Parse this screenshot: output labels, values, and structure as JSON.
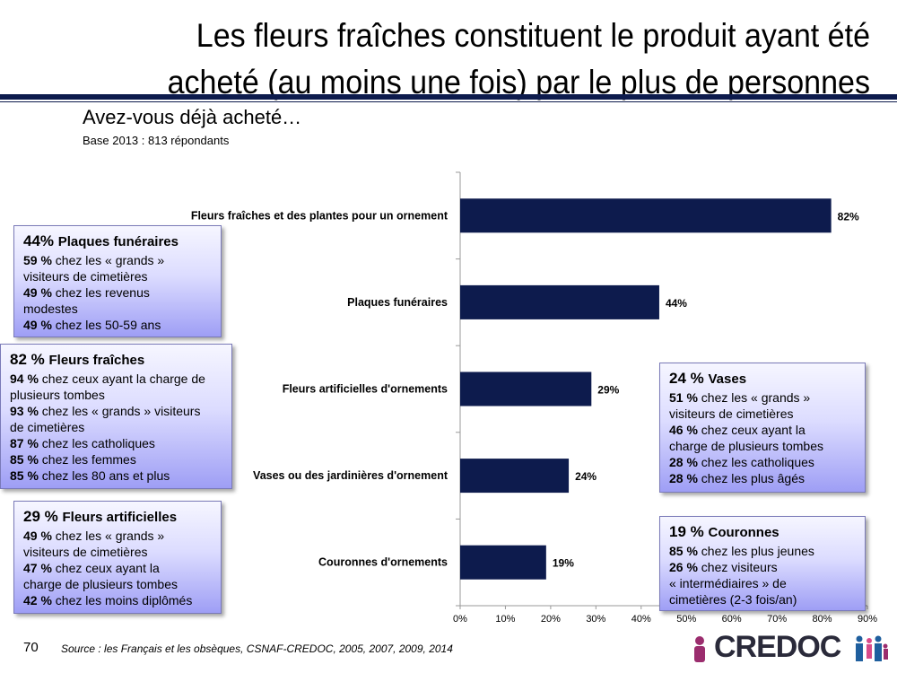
{
  "title_line1": "Les fleurs fraîches constituent le produit ayant été",
  "title_line2": "acheté (au moins une fois) par le plus de personnes",
  "question": "Avez-vous déjà acheté…",
  "base": "Base 2013 : 813 répondants",
  "chart_data": {
    "type": "bar",
    "orientation": "horizontal",
    "categories": [
      "Fleurs fraîches et des plantes pour un ornement",
      "Plaques funéraires",
      "Fleurs artificielles d'ornements",
      "Vases ou des jardinières d'ornement",
      "Couronnes d'ornements"
    ],
    "values": [
      82,
      44,
      29,
      24,
      19
    ],
    "data_labels": [
      "82%",
      "44%",
      "29%",
      "24%",
      "19%"
    ],
    "xlim": [
      0,
      90
    ],
    "x_ticks": [
      "0%",
      "10%",
      "20%",
      "30%",
      "40%",
      "50%",
      "60%",
      "70%",
      "80%",
      "90%"
    ],
    "grid": false,
    "bar_color": "#0d1b4d"
  },
  "boxes": {
    "plaques": {
      "pct": "44%",
      "name": "Plaques funéraires",
      "lines": [
        {
          "b": "59 %",
          "t": " chez les « grands »"
        },
        {
          "b": "",
          "t": "visiteurs de cimetières"
        },
        {
          "b": "49 %",
          "t": " chez les revenus"
        },
        {
          "b": "",
          "t": "modestes"
        },
        {
          "b": "49 %",
          "t": " chez les  50-59 ans"
        }
      ]
    },
    "fleurs": {
      "pct": "82 %",
      "name": "Fleurs fraîches",
      "lines": [
        {
          "b": "94 %",
          "t": " chez ceux ayant la charge de"
        },
        {
          "b": "",
          "t": "plusieurs tombes"
        },
        {
          "b": "93 %",
          "t": " chez les « grands » visiteurs"
        },
        {
          "b": "",
          "t": "de cimetières"
        },
        {
          "b": "87 %",
          "t": " chez les catholiques"
        },
        {
          "b": "85 %",
          "t": " chez les femmes"
        },
        {
          "b": "85 %",
          "t": " chez les 80 ans et plus"
        }
      ]
    },
    "artificielles": {
      "pct": "29 %",
      "name": "Fleurs artificielles",
      "lines": [
        {
          "b": "49 %",
          "t": " chez les « grands »"
        },
        {
          "b": "",
          "t": "visiteurs de cimetières"
        },
        {
          "b": "47 %",
          "t": " chez ceux ayant la"
        },
        {
          "b": "",
          "t": "charge de plusieurs tombes"
        },
        {
          "b": "42 %",
          "t": " chez les moins diplômés"
        }
      ]
    },
    "vases": {
      "pct": "24 %",
      "name": "Vases",
      "lines": [
        {
          "b": "51 %",
          "t": " chez les « grands »"
        },
        {
          "b": "",
          "t": "visiteurs de cimetières"
        },
        {
          "b": "46 %",
          "t": " chez ceux ayant la"
        },
        {
          "b": "",
          "t": "charge de plusieurs tombes"
        },
        {
          "b": "28 %",
          "t": " chez les catholiques"
        },
        {
          "b": "28 %",
          "t": " chez les plus âgés"
        }
      ]
    },
    "couronnes": {
      "pct": "19 %",
      "name": "Couronnes",
      "lines": [
        {
          "b": "85 %",
          "t": " chez les plus jeunes"
        },
        {
          "b": "26 %",
          "t": " chez visiteurs"
        },
        {
          "b": "",
          "t": "« intermédiaires » de"
        },
        {
          "b": "",
          "t": "cimetières (2-3 fois/an)"
        }
      ]
    }
  },
  "page_number": "70",
  "source": "Source : les Français et les obsèques, CSNAF-CREDOC, 2005, 2007, 2009, 2014",
  "logo_text": "CREDOC"
}
